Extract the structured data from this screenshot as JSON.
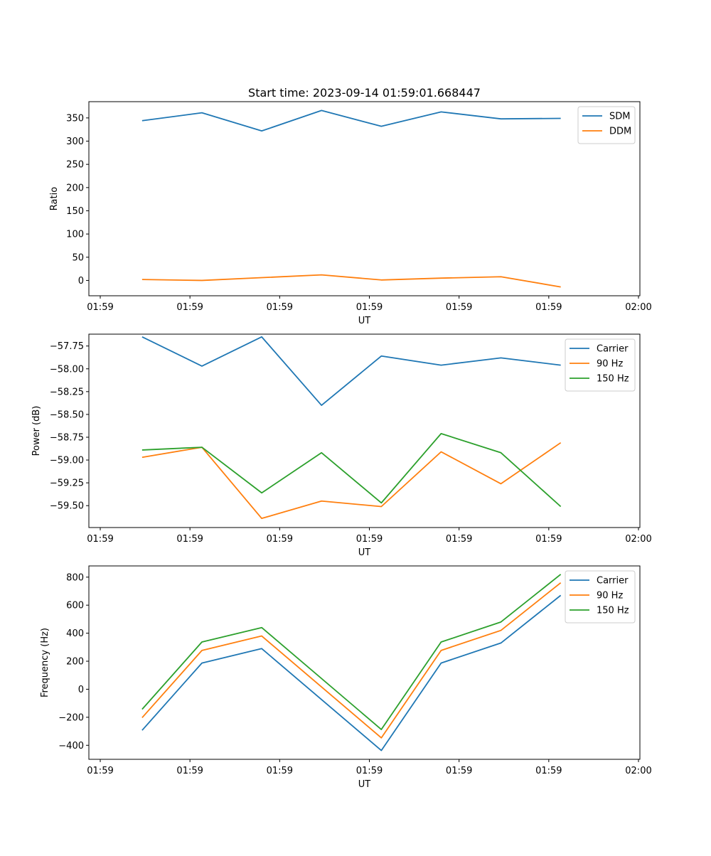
{
  "figure_title": "Start time: 2023-09-14 01:59:01.668447",
  "colors": {
    "blue": "#1f77b4",
    "orange": "#ff7f0e",
    "green": "#2ca02c"
  },
  "chart_data": [
    {
      "type": "line",
      "title": "Start time: 2023-09-14 01:59:01.668447",
      "xlabel": "UT",
      "ylabel": "Ratio",
      "x": [
        1,
        2,
        3,
        4,
        5,
        6,
        7,
        8
      ],
      "xlim": [
        0.3,
        9.3
      ],
      "x_ticks": [
        {
          "pos": 0.3,
          "label": "01:59"
        },
        {
          "pos": 1.8,
          "label": "01:59"
        },
        {
          "pos": 3.3,
          "label": "01:59"
        },
        {
          "pos": 4.8,
          "label": "01:59"
        },
        {
          "pos": 6.3,
          "label": "01:59"
        },
        {
          "pos": 7.8,
          "label": "01:59"
        },
        {
          "pos": 9.3,
          "label": "02:00"
        }
      ],
      "ylim": [
        -33,
        385
      ],
      "y_ticks": [
        {
          "value": 0,
          "label": "0"
        },
        {
          "value": 50,
          "label": "50"
        },
        {
          "value": 100,
          "label": "100"
        },
        {
          "value": 150,
          "label": "150"
        },
        {
          "value": 200,
          "label": "200"
        },
        {
          "value": 250,
          "label": "250"
        },
        {
          "value": 300,
          "label": "300"
        },
        {
          "value": 350,
          "label": "350"
        }
      ],
      "legend_position": "top-right",
      "series": [
        {
          "name": "SDM",
          "color": "#1f77b4",
          "values": [
            344,
            361,
            322,
            366,
            332,
            363,
            348,
            349
          ]
        },
        {
          "name": "DDM",
          "color": "#ff7f0e",
          "values": [
            2,
            0,
            6,
            12,
            1,
            5,
            8,
            -14
          ]
        }
      ]
    },
    {
      "type": "line",
      "title": "",
      "xlabel": "UT",
      "ylabel": "Power (dB)",
      "x": [
        1,
        2,
        3,
        4,
        5,
        6,
        7,
        8
      ],
      "xlim": [
        0.3,
        9.3
      ],
      "x_ticks": [
        {
          "pos": 0.3,
          "label": "01:59"
        },
        {
          "pos": 1.8,
          "label": "01:59"
        },
        {
          "pos": 3.3,
          "label": "01:59"
        },
        {
          "pos": 4.8,
          "label": "01:59"
        },
        {
          "pos": 6.3,
          "label": "01:59"
        },
        {
          "pos": 7.8,
          "label": "01:59"
        },
        {
          "pos": 9.3,
          "label": "02:00"
        }
      ],
      "ylim": [
        -59.74,
        -57.62
      ],
      "y_ticks": [
        {
          "value": -57.75,
          "label": "−57.75"
        },
        {
          "value": -58.0,
          "label": "−58.00"
        },
        {
          "value": -58.25,
          "label": "−58.25"
        },
        {
          "value": -58.5,
          "label": "−58.50"
        },
        {
          "value": -58.75,
          "label": "−58.75"
        },
        {
          "value": -59.0,
          "label": "−59.00"
        },
        {
          "value": -59.25,
          "label": "−59.25"
        },
        {
          "value": -59.5,
          "label": "−59.50"
        }
      ],
      "legend_position": "top-right",
      "series": [
        {
          "name": "Carrier",
          "color": "#1f77b4",
          "values": [
            -57.65,
            -57.97,
            -57.65,
            -58.4,
            -57.86,
            -57.96,
            -57.88,
            -57.96
          ]
        },
        {
          "name": "90 Hz",
          "color": "#ff7f0e",
          "values": [
            -58.97,
            -58.86,
            -59.64,
            -59.45,
            -59.51,
            -58.91,
            -59.26,
            -58.81
          ]
        },
        {
          "name": "150 Hz",
          "color": "#2ca02c",
          "values": [
            -58.89,
            -58.86,
            -59.36,
            -58.92,
            -59.47,
            -58.71,
            -58.92,
            -59.51
          ]
        }
      ]
    },
    {
      "type": "line",
      "title": "",
      "xlabel": "UT",
      "ylabel": "Frequency (Hz)",
      "x": [
        1,
        2,
        3,
        4,
        5,
        6,
        7,
        8
      ],
      "xlim": [
        0.3,
        9.3
      ],
      "x_ticks": [
        {
          "pos": 0.3,
          "label": "01:59"
        },
        {
          "pos": 1.8,
          "label": "01:59"
        },
        {
          "pos": 3.3,
          "label": "01:59"
        },
        {
          "pos": 4.8,
          "label": "01:59"
        },
        {
          "pos": 6.3,
          "label": "01:59"
        },
        {
          "pos": 7.8,
          "label": "01:59"
        },
        {
          "pos": 9.3,
          "label": "02:00"
        }
      ],
      "ylim": [
        -500,
        880
      ],
      "y_ticks": [
        {
          "value": -400,
          "label": "−400"
        },
        {
          "value": -200,
          "label": "−200"
        },
        {
          "value": 0,
          "label": "0"
        },
        {
          "value": 200,
          "label": "200"
        },
        {
          "value": 400,
          "label": "400"
        },
        {
          "value": 600,
          "label": "600"
        },
        {
          "value": 800,
          "label": "800"
        }
      ],
      "legend_position": "top-right",
      "series": [
        {
          "name": "Carrier",
          "color": "#1f77b4",
          "values": [
            -293,
            187,
            290,
            null,
            -437,
            187,
            330,
            670
          ]
        },
        {
          "name": "90 Hz",
          "color": "#ff7f0e",
          "values": [
            -203,
            277,
            380,
            null,
            -347,
            277,
            420,
            760
          ]
        },
        {
          "name": "150 Hz",
          "color": "#2ca02c",
          "values": [
            -143,
            337,
            440,
            null,
            -287,
            337,
            480,
            820
          ]
        }
      ]
    }
  ]
}
